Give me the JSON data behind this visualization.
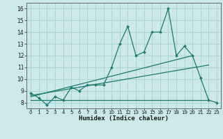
{
  "xlabel": "Humidex (Indice chaleur)",
  "bg_color": "#cce8e8",
  "grid_color": "#aad4d4",
  "line_color": "#1a7a6e",
  "xlim": [
    -0.5,
    23.5
  ],
  "ylim": [
    7.5,
    16.5
  ],
  "xticks": [
    0,
    1,
    2,
    3,
    4,
    5,
    6,
    7,
    8,
    9,
    10,
    11,
    12,
    13,
    14,
    15,
    16,
    17,
    18,
    19,
    20,
    21,
    22,
    23
  ],
  "yticks": [
    8,
    9,
    10,
    11,
    12,
    13,
    14,
    15,
    16
  ],
  "line1_x": [
    0,
    1,
    2,
    3,
    4,
    5,
    6,
    7,
    8,
    9,
    10,
    11,
    12,
    13,
    14,
    15,
    16,
    17,
    18,
    19,
    20,
    21,
    22,
    23
  ],
  "line1_y": [
    8.8,
    8.4,
    7.8,
    8.5,
    8.2,
    9.3,
    9.0,
    9.5,
    9.5,
    9.5,
    11.0,
    13.0,
    14.5,
    12.0,
    12.3,
    14.0,
    14.0,
    16.0,
    12.0,
    12.8,
    12.0,
    10.1,
    8.2,
    8.0
  ],
  "line2_x": [
    0,
    20
  ],
  "line2_y": [
    8.5,
    12.0
  ],
  "line3_x": [
    0,
    22
  ],
  "line3_y": [
    8.6,
    11.2
  ],
  "line4_x": [
    0,
    22
  ],
  "line4_y": [
    8.2,
    8.2
  ]
}
